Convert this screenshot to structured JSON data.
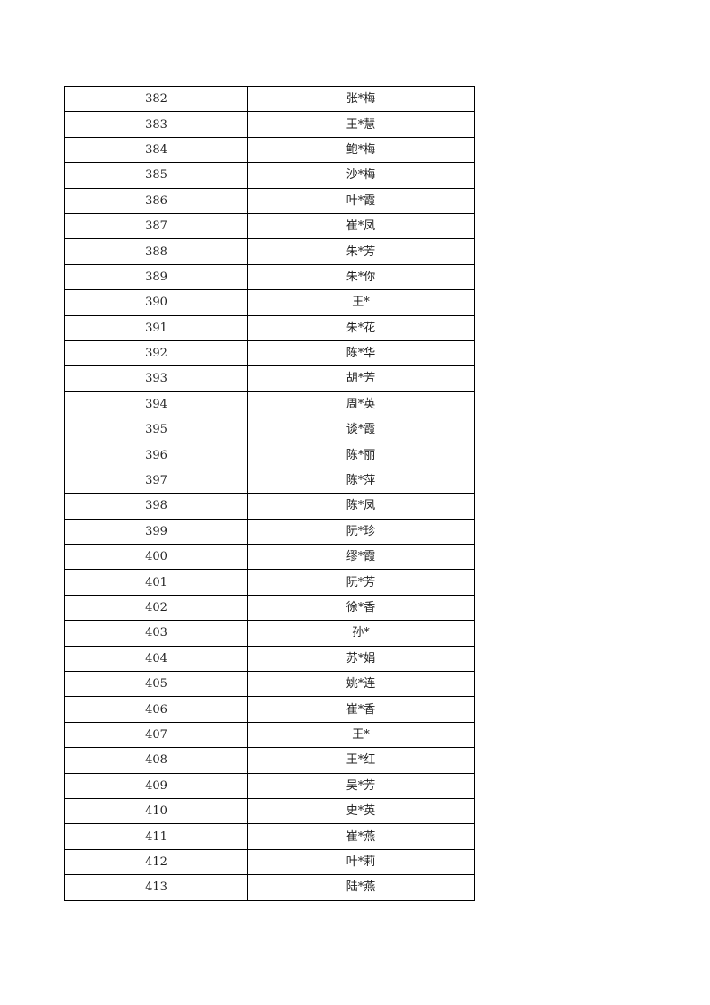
{
  "rows": [
    {
      "no": "382",
      "name": "张*梅"
    },
    {
      "no": "383",
      "name": "王*慧"
    },
    {
      "no": "384",
      "name": "鲍*梅"
    },
    {
      "no": "385",
      "name": "沙*梅"
    },
    {
      "no": "386",
      "name": "叶*霞"
    },
    {
      "no": "387",
      "name": "崔*凤"
    },
    {
      "no": "388",
      "name": "朱*芳"
    },
    {
      "no": "389",
      "name": "朱*你"
    },
    {
      "no": "390",
      "name": "王*"
    },
    {
      "no": "391",
      "name": "朱*花"
    },
    {
      "no": "392",
      "name": "陈*华"
    },
    {
      "no": "393",
      "name": "胡*芳"
    },
    {
      "no": "394",
      "name": "周*英"
    },
    {
      "no": "395",
      "name": "谈*霞"
    },
    {
      "no": "396",
      "name": "陈*丽"
    },
    {
      "no": "397",
      "name": "陈*萍"
    },
    {
      "no": "398",
      "name": "陈*凤"
    },
    {
      "no": "399",
      "name": "阮*珍"
    },
    {
      "no": "400",
      "name": "缪*霞"
    },
    {
      "no": "401",
      "name": "阮*芳"
    },
    {
      "no": "402",
      "name": "徐*香"
    },
    {
      "no": "403",
      "name": "孙*"
    },
    {
      "no": "404",
      "name": "苏*娟"
    },
    {
      "no": "405",
      "name": "姚*连"
    },
    {
      "no": "406",
      "name": "崔*香"
    },
    {
      "no": "407",
      "name": "王*"
    },
    {
      "no": "408",
      "name": "王*红"
    },
    {
      "no": "409",
      "name": "吴*芳"
    },
    {
      "no": "410",
      "name": "史*英"
    },
    {
      "no": "411",
      "name": "崔*燕"
    },
    {
      "no": "412",
      "name": "叶*莉"
    },
    {
      "no": "413",
      "name": "陆*燕"
    }
  ]
}
